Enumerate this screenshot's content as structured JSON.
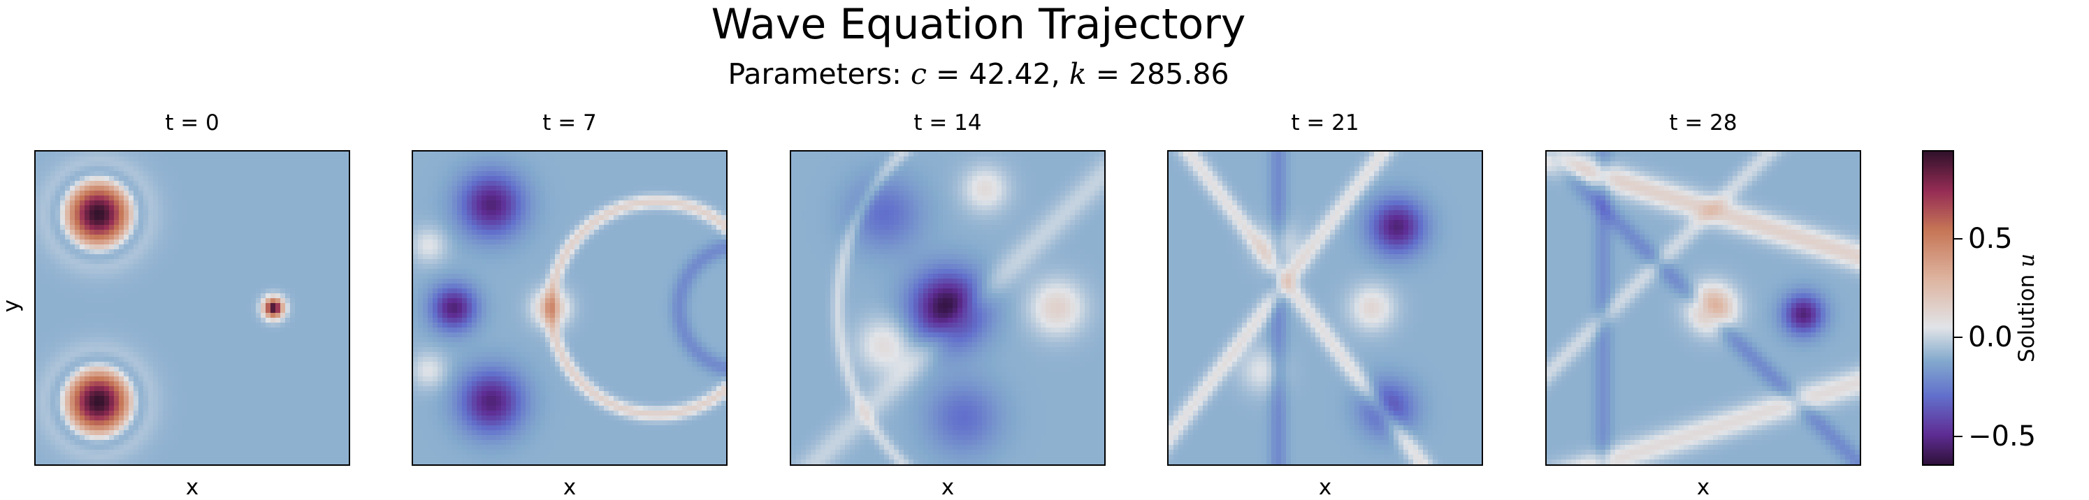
{
  "chart_data": {
    "type": "heatmap",
    "title": "Wave Equation Trajectory",
    "subtitle": {
      "prefix": "Parameters: ",
      "c_symbol": "c",
      "c_value": " = 42.42, ",
      "k_symbol": "k",
      "k_value": " = 285.86"
    },
    "xlabel": "x",
    "ylabel": "y",
    "colormap": "twilight_shifted",
    "colorbar": {
      "label_prefix": "Solution ",
      "label_symbol": "u",
      "range": [
        -0.65,
        0.95
      ],
      "ticks": [
        0.5,
        0.0,
        -0.5
      ],
      "tick_labels": [
        "0.5",
        "0.0",
        "−0.5"
      ]
    },
    "panels": [
      {
        "label": "t = 0",
        "t": 0
      },
      {
        "label": "t = 7",
        "t": 7
      },
      {
        "label": "t = 14",
        "t": 14
      },
      {
        "label": "t = 21",
        "t": 21
      },
      {
        "label": "t = 28",
        "t": 28
      }
    ]
  }
}
